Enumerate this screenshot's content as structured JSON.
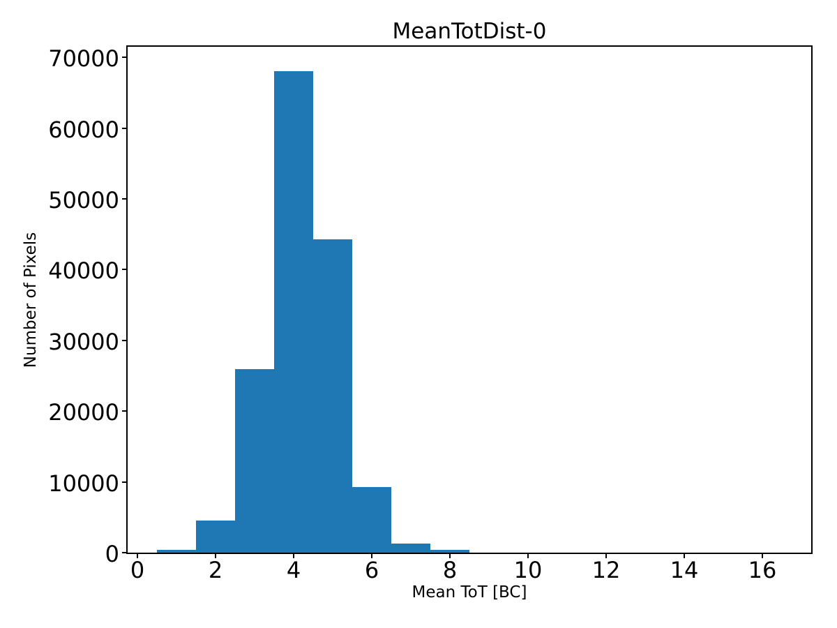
{
  "chart_data": {
    "type": "bar",
    "subtype": "histogram",
    "title": "MeanTotDist-0",
    "xlabel": "Mean ToT [BC]",
    "ylabel": "Number of Pixels",
    "bin_edges": [
      0.5,
      1.5,
      2.5,
      3.5,
      4.5,
      5.5,
      6.5,
      7.5,
      8.5,
      9.5,
      10.5,
      11.5,
      12.5,
      13.5,
      14.5,
      15.5,
      16.5
    ],
    "counts": [
      400,
      4500,
      25900,
      68000,
      44300,
      9300,
      1250,
      350,
      0,
      0,
      0,
      0,
      0,
      0,
      0,
      0
    ],
    "xticks": [
      0,
      2,
      4,
      6,
      8,
      10,
      12,
      14,
      16
    ],
    "yticks": [
      0,
      10000,
      20000,
      30000,
      40000,
      50000,
      60000,
      70000
    ],
    "xlim": [
      -0.25,
      17.25
    ],
    "ylim": [
      0,
      71500
    ],
    "bar_color": "#1f77b4",
    "spine_color": "#000000",
    "text_color": "#000000",
    "background_color": "#ffffff",
    "grid": false,
    "legend": null
  }
}
